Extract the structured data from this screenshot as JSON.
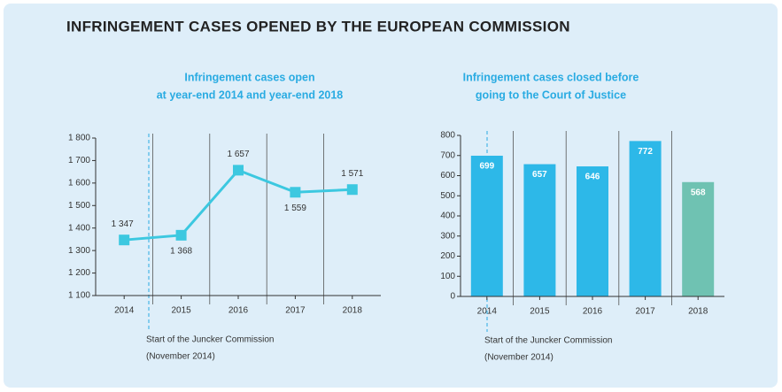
{
  "title": "INFRINGEMENT CASES OPENED BY THE EUROPEAN COMMISSION",
  "chart_data": [
    {
      "type": "line",
      "title": [
        "Infringement cases open",
        "at year-end 2014 and year-end 2018"
      ],
      "categories": [
        "2014",
        "2015",
        "2016",
        "2017",
        "2018"
      ],
      "values": [
        1347,
        1368,
        1657,
        1559,
        1571
      ],
      "value_labels": [
        "1 347",
        "1 368",
        "1 657",
        "1 559",
        "1 571"
      ],
      "color": "#3cc8e0",
      "ylim": [
        1100,
        1800
      ],
      "yticks": [
        {
          "value": 1100,
          "label": "1 100"
        },
        {
          "value": 1200,
          "label": "1 200"
        },
        {
          "value": 1300,
          "label": "1 300"
        },
        {
          "value": 1400,
          "label": "1 400"
        },
        {
          "value": 1500,
          "label": "1 500"
        },
        {
          "value": 1600,
          "label": "1 600"
        },
        {
          "value": 1700,
          "label": "1 700"
        },
        {
          "value": 1800,
          "label": "1 800"
        }
      ],
      "annotation": [
        "Start of the Juncker Commission",
        "(November 2014)"
      ]
    },
    {
      "type": "bar",
      "title": [
        "Infringement cases closed before",
        "going to the Court of Justice"
      ],
      "categories": [
        "2014",
        "2015",
        "2016",
        "2017",
        "2018"
      ],
      "values": [
        699,
        657,
        646,
        772,
        568
      ],
      "colors": [
        "#2db8e8",
        "#2db8e8",
        "#2db8e8",
        "#2db8e8",
        "#6fc2b2"
      ],
      "ylim": [
        0,
        800
      ],
      "yticks": [
        0,
        100,
        200,
        300,
        400,
        500,
        600,
        700,
        800
      ],
      "annotation": [
        "Start of the Juncker Commission",
        "(November 2014)"
      ]
    }
  ]
}
